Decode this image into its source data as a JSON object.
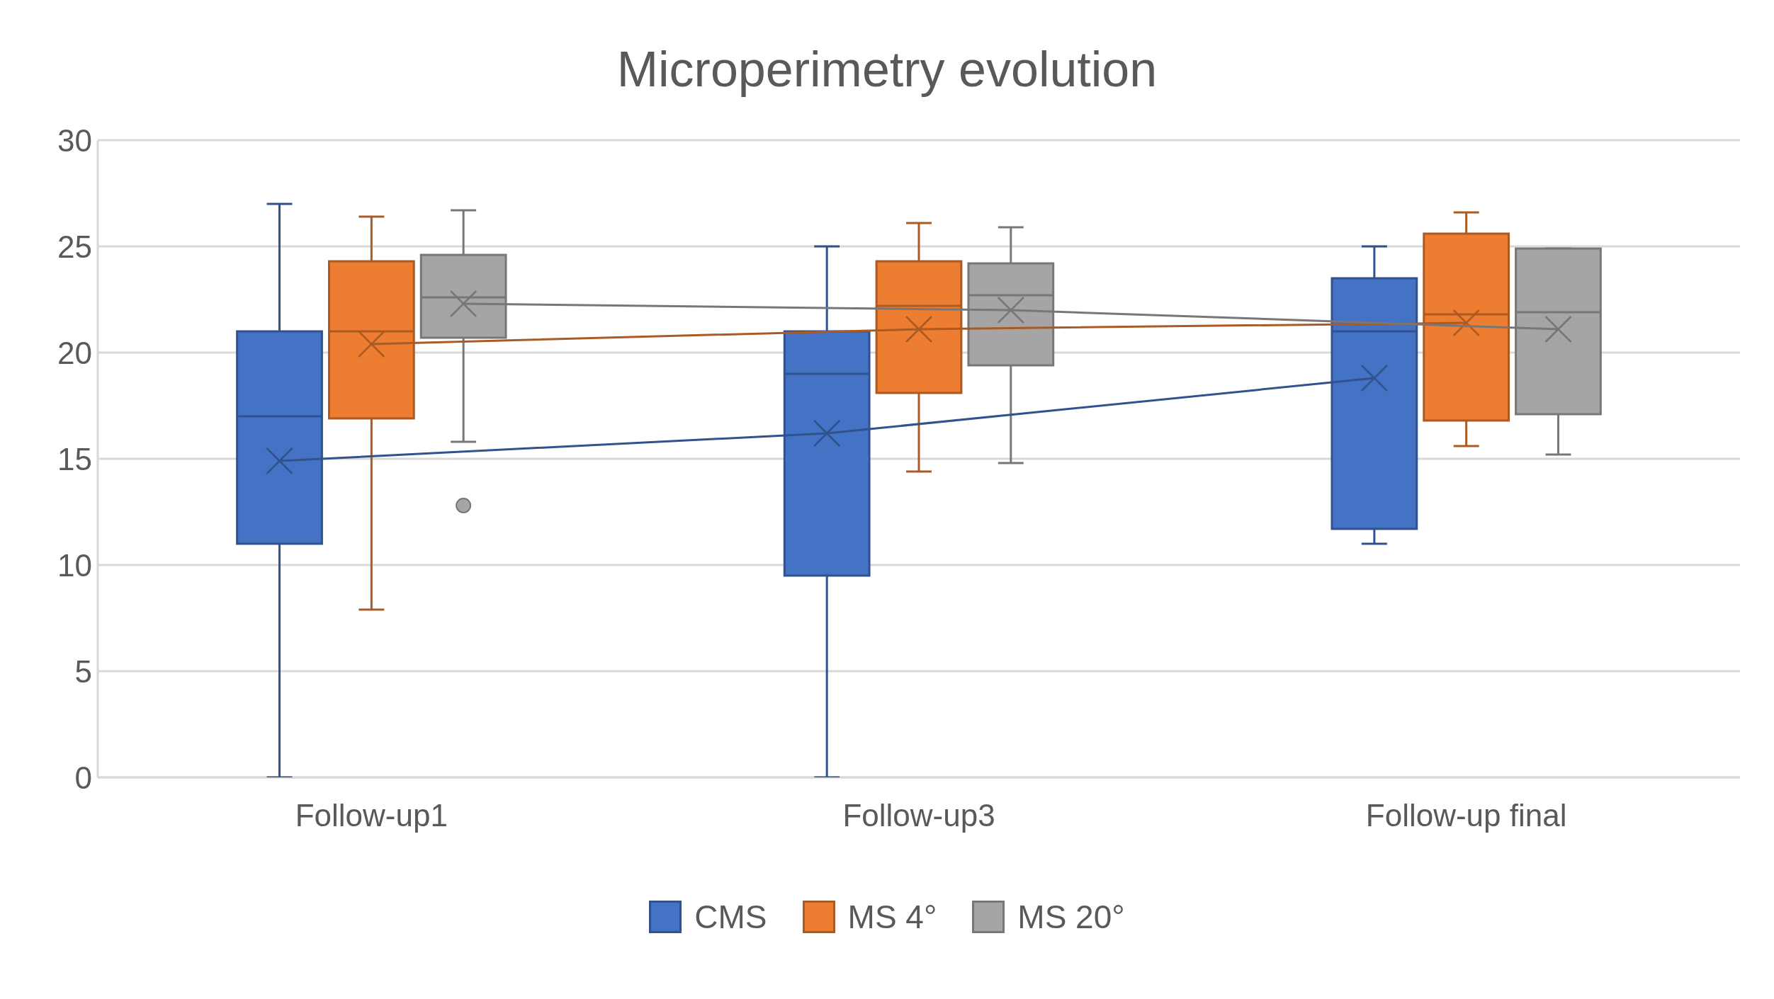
{
  "chart_data": {
    "type": "box",
    "title": "Microperimetry evolution",
    "categories": [
      "Follow-up1",
      "Follow-up3",
      "Follow-up final"
    ],
    "series": [
      {
        "name": "CMS",
        "color": "#4472c4",
        "boxes": [
          {
            "low": 0,
            "q1": 11,
            "median": 17,
            "q3": 21,
            "high": 27,
            "mean": 14.9
          },
          {
            "low": 0,
            "q1": 9.5,
            "median": 19,
            "q3": 21,
            "high": 25,
            "mean": 16.2
          },
          {
            "low": 11,
            "q1": 11.7,
            "median": 21,
            "q3": 23.5,
            "high": 25,
            "mean": 18.8
          }
        ]
      },
      {
        "name": "MS 4°",
        "color": "#ed7d31",
        "boxes": [
          {
            "low": 7.9,
            "q1": 16.9,
            "median": 21,
            "q3": 24.3,
            "high": 26.4,
            "mean": 20.4
          },
          {
            "low": 14.4,
            "q1": 18.1,
            "median": 22.2,
            "q3": 24.3,
            "high": 26.1,
            "mean": 21.1
          },
          {
            "low": 15.6,
            "q1": 16.8,
            "median": 21.8,
            "q3": 25.6,
            "high": 26.6,
            "mean": 21.4
          }
        ]
      },
      {
        "name": "MS 20°",
        "color": "#a5a5a5",
        "boxes": [
          {
            "low": 15.8,
            "q1": 20.7,
            "median": 22.6,
            "q3": 24.6,
            "high": 26.7,
            "mean": 22.3,
            "outliers": [
              12.8
            ]
          },
          {
            "low": 14.8,
            "q1": 19.4,
            "median": 22.7,
            "q3": 24.2,
            "high": 25.9,
            "mean": 22.0
          },
          {
            "low": 15.2,
            "q1": 17.1,
            "median": 21.9,
            "q3": 24.9,
            "high": 24.9,
            "mean": 21.1
          }
        ]
      },
      {
        "type": "line",
        "color": "#31528d",
        "values": [
          14.9,
          16.2,
          18.8
        ]
      },
      {
        "type": "line",
        "color": "#ab5a23",
        "values": [
          20.4,
          21.1,
          21.4
        ]
      },
      {
        "type": "line",
        "color": "#777777",
        "values": [
          22.3,
          22.0,
          21.1
        ]
      }
    ],
    "ylim": [
      0,
      30
    ],
    "yticks": [
      0,
      5,
      10,
      15,
      20,
      25,
      30
    ],
    "grid": "y",
    "legend": "bottom"
  }
}
